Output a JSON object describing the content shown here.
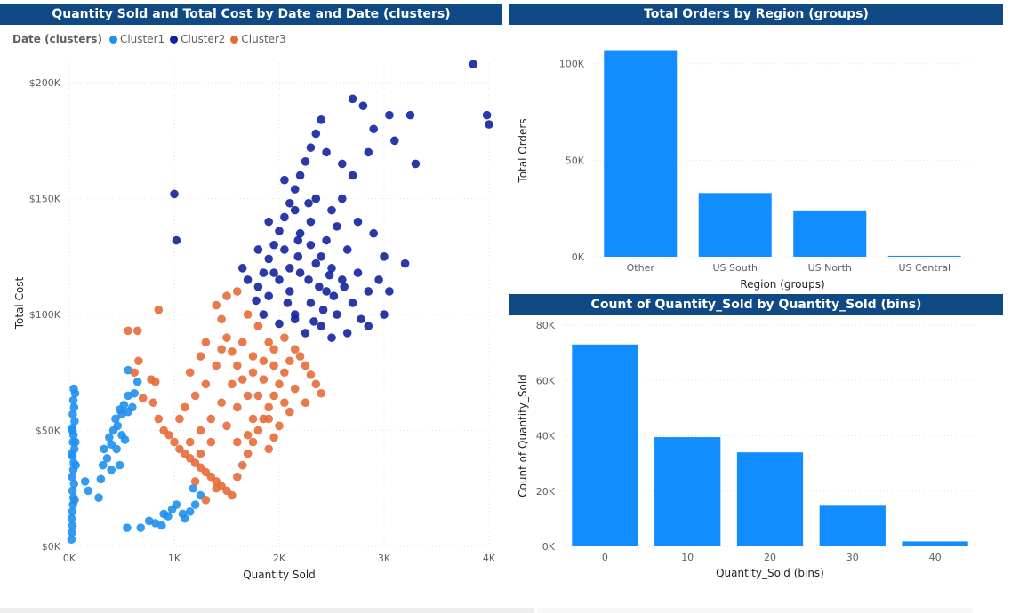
{
  "colors": {
    "title_bg": "#0f4a85",
    "bar": "#118dff",
    "cluster1": "#1e90ef",
    "cluster2": "#12239e",
    "cluster3": "#e66c37",
    "grid": "#d9d9d9"
  },
  "chart_data": [
    {
      "type": "scatter",
      "title": "Quantity Sold and Total Cost by Date and Date (clusters)",
      "xlabel": "Quantity Sold",
      "ylabel": "Total Cost",
      "xlim": [
        0,
        4000
      ],
      "ylim": [
        0,
        210000
      ],
      "x_ticks": [
        0,
        1000,
        2000,
        3000,
        4000
      ],
      "x_tick_labels": [
        "0K",
        "1K",
        "2K",
        "3K",
        "4K"
      ],
      "y_ticks": [
        0,
        50000,
        100000,
        150000,
        200000
      ],
      "y_tick_labels": [
        "$0K",
        "$50K",
        "$100K",
        "$150K",
        "$200K"
      ],
      "legend_title": "Date (clusters)",
      "legend_position": "top-left",
      "grid": true,
      "series": [
        {
          "name": "Cluster1",
          "points": [
            [
              20,
              3000
            ],
            [
              25,
              6000
            ],
            [
              30,
              9000
            ],
            [
              22,
              12000
            ],
            [
              28,
              15000
            ],
            [
              35,
              18000
            ],
            [
              40,
              21000
            ],
            [
              30,
              24000
            ],
            [
              45,
              27000
            ],
            [
              25,
              30000
            ],
            [
              38,
              33000
            ],
            [
              42,
              36000
            ],
            [
              30,
              39000
            ],
            [
              48,
              42000
            ],
            [
              35,
              45000
            ],
            [
              40,
              48000
            ],
            [
              28,
              51000
            ],
            [
              50,
              54000
            ],
            [
              33,
              57000
            ],
            [
              45,
              60000
            ],
            [
              38,
              63000
            ],
            [
              55,
              66000
            ],
            [
              42,
              68000
            ],
            [
              25,
              40000
            ],
            [
              50,
              20000
            ],
            [
              60,
              35000
            ],
            [
              30,
              50000
            ],
            [
              58,
              45000
            ],
            [
              180,
              24000
            ],
            [
              150,
              28000
            ],
            [
              280,
              21000
            ],
            [
              300,
              29000
            ],
            [
              320,
              35000
            ],
            [
              360,
              38000
            ],
            [
              330,
              42000
            ],
            [
              400,
              44000
            ],
            [
              380,
              47000
            ],
            [
              420,
              50000
            ],
            [
              460,
              52000
            ],
            [
              440,
              55000
            ],
            [
              500,
              57000
            ],
            [
              480,
              59000
            ],
            [
              520,
              61000
            ],
            [
              560,
              58000
            ],
            [
              600,
              60000
            ],
            [
              620,
              66000
            ],
            [
              650,
              71000
            ],
            [
              560,
              76000
            ],
            [
              560,
              65000
            ],
            [
              500,
              48000
            ],
            [
              450,
              42000
            ],
            [
              530,
              46000
            ],
            [
              480,
              35000
            ],
            [
              400,
              33000
            ],
            [
              550,
              8000
            ],
            [
              680,
              8000
            ],
            [
              760,
              11000
            ],
            [
              820,
              10000
            ],
            [
              900,
              14000
            ],
            [
              940,
              13000
            ],
            [
              980,
              16000
            ],
            [
              1080,
              14000
            ],
            [
              1150,
              15000
            ],
            [
              1200,
              18000
            ],
            [
              1250,
              22000
            ],
            [
              1100,
              12000
            ],
            [
              880,
              9000
            ],
            [
              1020,
              18000
            ],
            [
              1180,
              25000
            ]
          ]
        },
        {
          "name": "Cluster2",
          "points": [
            [
              1000,
              152000
            ],
            [
              1020,
              132000
            ],
            [
              3850,
              208000
            ],
            [
              3980,
              186000
            ],
            [
              4000,
              182000
            ],
            [
              1780,
              106000
            ],
            [
              1800,
              112000
            ],
            [
              1850,
              118000
            ],
            [
              1900,
              124000
            ],
            [
              1950,
              130000
            ],
            [
              2000,
              136000
            ],
            [
              2050,
              142000
            ],
            [
              2100,
              148000
            ],
            [
              2150,
              154000
            ],
            [
              2200,
              160000
            ],
            [
              2250,
              166000
            ],
            [
              2300,
              172000
            ],
            [
              2350,
              178000
            ],
            [
              2400,
              184000
            ],
            [
              2700,
              193000
            ],
            [
              2800,
              190000
            ],
            [
              3050,
              186000
            ],
            [
              3250,
              186000
            ],
            [
              2900,
              180000
            ],
            [
              3100,
              175000
            ],
            [
              3300,
              165000
            ],
            [
              2850,
              170000
            ],
            [
              2700,
              160000
            ],
            [
              2600,
              150000
            ],
            [
              2500,
              145000
            ],
            [
              2750,
              140000
            ],
            [
              2900,
              135000
            ],
            [
              3000,
              125000
            ],
            [
              3200,
              122000
            ],
            [
              3050,
              110000
            ],
            [
              3000,
              100000
            ],
            [
              2850,
              95000
            ],
            [
              2700,
              105000
            ],
            [
              2600,
              115000
            ],
            [
              2500,
              120000
            ],
            [
              2400,
              125000
            ],
            [
              2300,
              130000
            ],
            [
              2200,
              135000
            ],
            [
              2100,
              120000
            ],
            [
              2000,
              115000
            ],
            [
              1900,
              108000
            ],
            [
              1850,
              100000
            ],
            [
              2000,
              96000
            ],
            [
              2150,
              100000
            ],
            [
              2300,
              105000
            ],
            [
              2450,
              110000
            ],
            [
              2550,
              100000
            ],
            [
              2400,
              95000
            ],
            [
              2250,
              92000
            ],
            [
              2100,
              110000
            ],
            [
              2200,
              118000
            ],
            [
              2350,
              122000
            ],
            [
              2450,
              132000
            ],
            [
              2550,
              138000
            ],
            [
              2650,
              128000
            ],
            [
              2750,
              118000
            ],
            [
              2300,
              140000
            ],
            [
              2150,
              145000
            ],
            [
              2050,
              128000
            ],
            [
              1950,
              118000
            ],
            [
              2500,
              90000
            ],
            [
              2650,
              92000
            ],
            [
              2780,
              98000
            ],
            [
              2380,
              112000
            ],
            [
              2280,
              115000
            ],
            [
              2180,
              125000
            ],
            [
              2080,
              105000
            ],
            [
              2420,
              102000
            ],
            [
              2520,
              108000
            ],
            [
              2620,
              112000
            ],
            [
              1800,
              128000
            ],
            [
              1900,
              140000
            ],
            [
              2050,
              158000
            ],
            [
              2350,
              150000
            ],
            [
              2600,
              165000
            ],
            [
              2450,
              170000
            ],
            [
              1650,
              120000
            ],
            [
              1700,
              115000
            ],
            [
              2850,
              110000
            ],
            [
              2950,
              115000
            ],
            [
              2150,
              98000
            ],
            [
              2330,
              97000
            ],
            [
              2480,
              117000
            ],
            [
              2180,
              132000
            ],
            [
              2280,
              148000
            ]
          ]
        },
        {
          "name": "Cluster3",
          "points": [
            [
              850,
              102000
            ],
            [
              560,
              93000
            ],
            [
              650,
              93000
            ],
            [
              660,
              80000
            ],
            [
              620,
              75000
            ],
            [
              780,
              72000
            ],
            [
              820,
              71000
            ],
            [
              700,
              64000
            ],
            [
              800,
              62000
            ],
            [
              850,
              55000
            ],
            [
              900,
              50000
            ],
            [
              950,
              48000
            ],
            [
              1000,
              45000
            ],
            [
              1050,
              42000
            ],
            [
              1100,
              40000
            ],
            [
              1150,
              38000
            ],
            [
              1200,
              36000
            ],
            [
              1250,
              34000
            ],
            [
              1300,
              32000
            ],
            [
              1350,
              30000
            ],
            [
              1400,
              28000
            ],
            [
              1450,
              26000
            ],
            [
              1500,
              24000
            ],
            [
              1550,
              22000
            ],
            [
              1600,
              30000
            ],
            [
              1650,
              35000
            ],
            [
              1700,
              40000
            ],
            [
              1750,
              45000
            ],
            [
              1800,
              50000
            ],
            [
              1850,
              55000
            ],
            [
              1900,
              60000
            ],
            [
              1950,
              65000
            ],
            [
              2000,
              70000
            ],
            [
              2050,
              75000
            ],
            [
              2100,
              80000
            ],
            [
              2150,
              85000
            ],
            [
              2200,
              82000
            ],
            [
              2250,
              78000
            ],
            [
              2300,
              74000
            ],
            [
              2350,
              70000
            ],
            [
              2400,
              66000
            ],
            [
              2250,
              62000
            ],
            [
              2100,
              58000
            ],
            [
              2000,
              52000
            ],
            [
              1950,
              47000
            ],
            [
              1900,
              42000
            ],
            [
              1750,
              55000
            ],
            [
              1700,
              65000
            ],
            [
              1650,
              72000
            ],
            [
              1600,
              78000
            ],
            [
              1550,
              84000
            ],
            [
              1500,
              90000
            ],
            [
              1450,
              98000
            ],
            [
              1400,
              104000
            ],
            [
              1500,
              108000
            ],
            [
              1600,
              110000
            ],
            [
              1700,
              100000
            ],
            [
              1800,
              95000
            ],
            [
              1900,
              88000
            ],
            [
              1950,
              78000
            ],
            [
              1850,
              72000
            ],
            [
              1750,
              82000
            ],
            [
              1650,
              88000
            ],
            [
              1550,
              70000
            ],
            [
              1450,
              62000
            ],
            [
              1350,
              55000
            ],
            [
              1250,
              50000
            ],
            [
              1150,
              45000
            ],
            [
              1050,
              55000
            ],
            [
              1100,
              60000
            ],
            [
              1200,
              65000
            ],
            [
              1300,
              70000
            ],
            [
              1400,
              78000
            ],
            [
              1250,
              82000
            ],
            [
              1150,
              75000
            ],
            [
              1300,
              88000
            ],
            [
              1450,
              85000
            ],
            [
              2050,
              90000
            ],
            [
              2150,
              68000
            ],
            [
              2050,
              62000
            ],
            [
              1900,
              55000
            ],
            [
              1800,
              65000
            ],
            [
              1750,
              75000
            ],
            [
              1850,
              80000
            ],
            [
              1950,
              85000
            ],
            [
              1600,
              60000
            ],
            [
              1500,
              52000
            ],
            [
              1350,
              45000
            ],
            [
              1250,
              40000
            ],
            [
              1200,
              28000
            ],
            [
              1300,
              20000
            ],
            [
              1400,
              25000
            ],
            [
              1700,
              48000
            ],
            [
              1600,
              45000
            ]
          ]
        }
      ]
    },
    {
      "type": "bar",
      "title": "Total Orders by Region (groups)",
      "xlabel": "Region (groups)",
      "ylabel": "Total Orders",
      "categories": [
        "Other",
        "US South",
        "US North",
        "US Central"
      ],
      "values": [
        107000,
        33000,
        24000,
        500
      ],
      "ylim": [
        0,
        110000
      ],
      "y_ticks": [
        0,
        50000,
        100000
      ],
      "y_tick_labels": [
        "0K",
        "50K",
        "100K"
      ],
      "grid": true
    },
    {
      "type": "bar",
      "title": "Count of Quantity_Sold by Quantity_Sold (bins)",
      "xlabel": "Quantity_Sold (bins)",
      "ylabel": "Count of Quantity_Sold",
      "categories": [
        "0",
        "10",
        "20",
        "30",
        "40"
      ],
      "values": [
        73000,
        39500,
        34000,
        15000,
        1800
      ],
      "ylim": [
        0,
        80000
      ],
      "y_ticks": [
        0,
        20000,
        40000,
        60000,
        80000
      ],
      "y_tick_labels": [
        "0K",
        "20K",
        "40K",
        "60K",
        "80K"
      ],
      "grid": true
    }
  ]
}
